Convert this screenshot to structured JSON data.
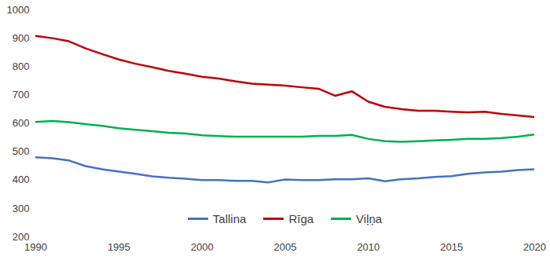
{
  "chart_data": {
    "type": "line",
    "x": [
      1990,
      1991,
      1992,
      1993,
      1994,
      1995,
      1996,
      1997,
      1998,
      1999,
      2000,
      2001,
      2002,
      2003,
      2004,
      2005,
      2006,
      2007,
      2008,
      2009,
      2010,
      2011,
      2012,
      2013,
      2014,
      2015,
      2016,
      2017,
      2018,
      2019,
      2020
    ],
    "series": [
      {
        "name": "Tallina",
        "color": "#4472c4",
        "values": [
          480,
          477,
          469,
          449,
          438,
          430,
          422,
          413,
          408,
          405,
          400,
          400,
          397,
          397,
          392,
          402,
          400,
          400,
          403,
          403,
          406,
          396,
          403,
          406,
          411,
          414,
          422,
          427,
          430,
          435,
          438
        ]
      },
      {
        "name": "Rīga",
        "color": "#c00000",
        "values": [
          908,
          900,
          889,
          864,
          844,
          825,
          810,
          798,
          785,
          775,
          764,
          758,
          748,
          740,
          736,
          733,
          727,
          722,
          697,
          713,
          676,
          658,
          650,
          644,
          644,
          641,
          639,
          641,
          633,
          628,
          622
        ]
      },
      {
        "name": "Viļņa",
        "color": "#00b050",
        "values": [
          605,
          608,
          604,
          597,
          591,
          583,
          577,
          572,
          567,
          564,
          558,
          555,
          553,
          553,
          553,
          553,
          553,
          556,
          556,
          559,
          545,
          537,
          535,
          537,
          540,
          542,
          545,
          545,
          548,
          553,
          561
        ]
      }
    ],
    "xlim": [
      1990,
      2020
    ],
    "xticks": [
      1990,
      1995,
      2000,
      2005,
      2010,
      2015,
      2020
    ],
    "ylim": [
      200,
      1000
    ],
    "yticks": [
      200,
      300,
      400,
      500,
      600,
      700,
      800,
      900,
      1000
    ],
    "grid": false,
    "legend": "bottom"
  }
}
